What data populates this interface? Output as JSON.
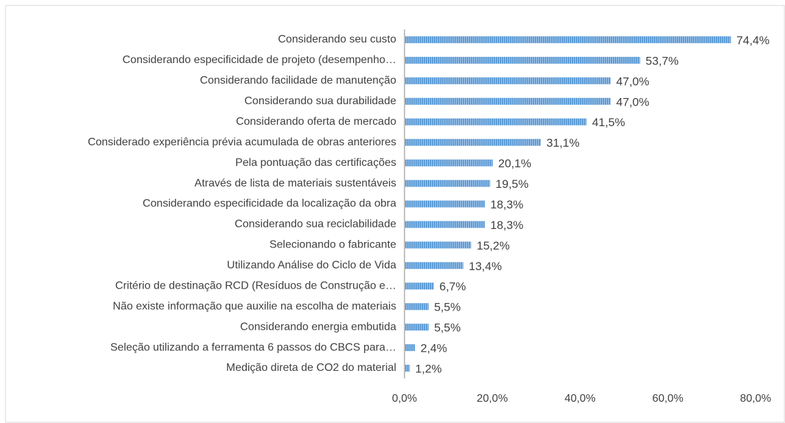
{
  "chart_data": {
    "type": "bar",
    "orientation": "horizontal",
    "categories": [
      "Considerando seu custo",
      "Considerando especificidade de projeto (desempenho…",
      "Considerando facilidade de manutenção",
      "Considerando sua durabilidade",
      "Considerando oferta de mercado",
      "Considerado experiência prévia acumulada de obras anteriores",
      "Pela pontuação das certificações",
      "Através de lista de materiais sustentáveis",
      "Considerando especificidade da localização da obra",
      "Considerando sua reciclabilidade",
      "Selecionando o fabricante",
      "Utilizando Análise do Ciclo de Vida",
      "Critério de destinação RCD (Resíduos de Construção e…",
      "Não existe informação que auxilie na escolha de materiais",
      "Considerando energia embutida",
      "Seleção utilizando a ferramenta 6 passos do CBCS para…",
      "Medição direta de CO2 do material"
    ],
    "values": [
      74.4,
      53.7,
      47.0,
      47.0,
      41.5,
      31.1,
      20.1,
      19.5,
      18.3,
      18.3,
      15.2,
      13.4,
      6.7,
      5.5,
      5.5,
      2.4,
      1.2
    ],
    "value_labels": [
      "74,4%",
      "53,7%",
      "47,0%",
      "47,0%",
      "41,5%",
      "31,1%",
      "20,1%",
      "19,5%",
      "18,3%",
      "18,3%",
      "15,2%",
      "13,4%",
      "6,7%",
      "5,5%",
      "5,5%",
      "2,4%",
      "1,2%"
    ],
    "color": "#5b9bd5",
    "xlim": [
      0,
      80
    ],
    "xticks": [
      {
        "value": 0,
        "label": "0,0%"
      },
      {
        "value": 20,
        "label": "20,0%"
      },
      {
        "value": 40,
        "label": "40,0%"
      },
      {
        "value": 60,
        "label": "60,0%"
      },
      {
        "value": 80,
        "label": "80,0%"
      }
    ],
    "grid": false
  }
}
